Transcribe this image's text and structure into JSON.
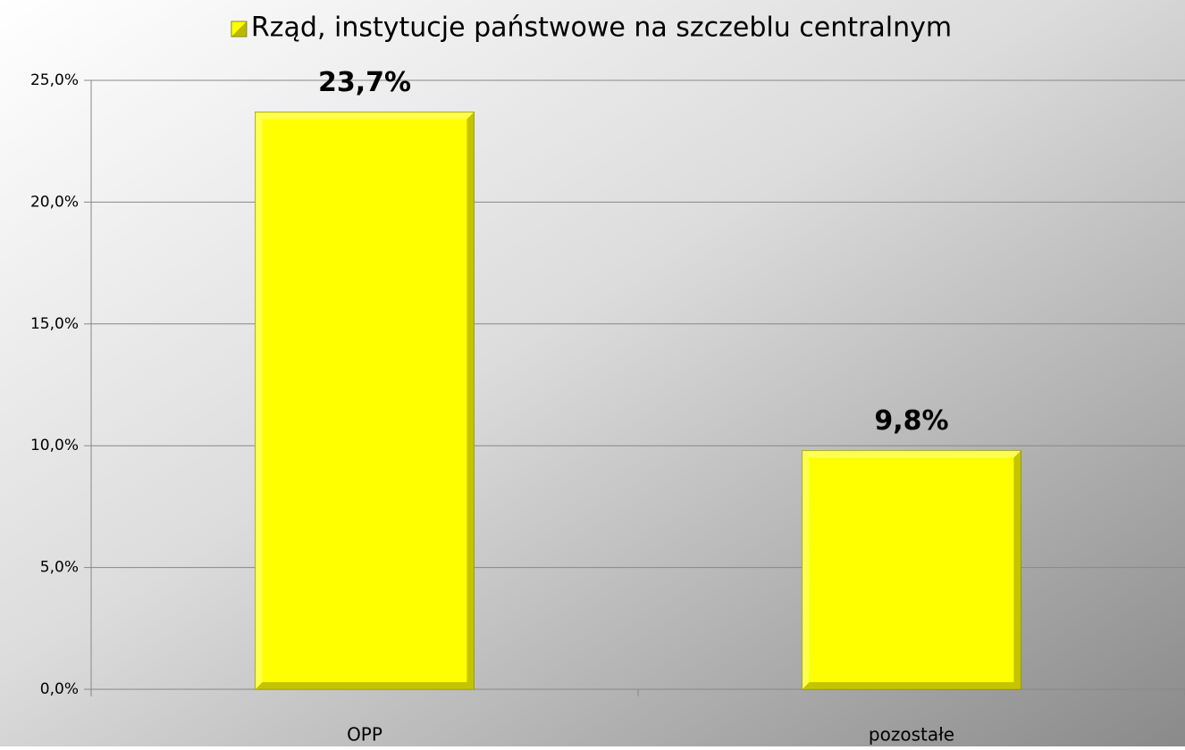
{
  "chart_data": {
    "type": "bar",
    "categories": [
      "OPP",
      "pozostałe"
    ],
    "series": [
      {
        "name": "Rząd, instytucje państwowe na szczeblu centralnym",
        "color": "#ffff00",
        "values": [
          23.7,
          9.8
        ],
        "value_labels": [
          "23,7%",
          "9,8%"
        ]
      }
    ],
    "ylim": [
      0,
      25
    ],
    "yticks": [
      {
        "value": 0,
        "label": "0,0%"
      },
      {
        "value": 5,
        "label": "5,0%"
      },
      {
        "value": 10,
        "label": "10,0%"
      },
      {
        "value": 15,
        "label": "15,0%"
      },
      {
        "value": 20,
        "label": "20,0%"
      },
      {
        "value": 25,
        "label": "25,0%"
      }
    ],
    "grid": true,
    "legend": "top"
  }
}
